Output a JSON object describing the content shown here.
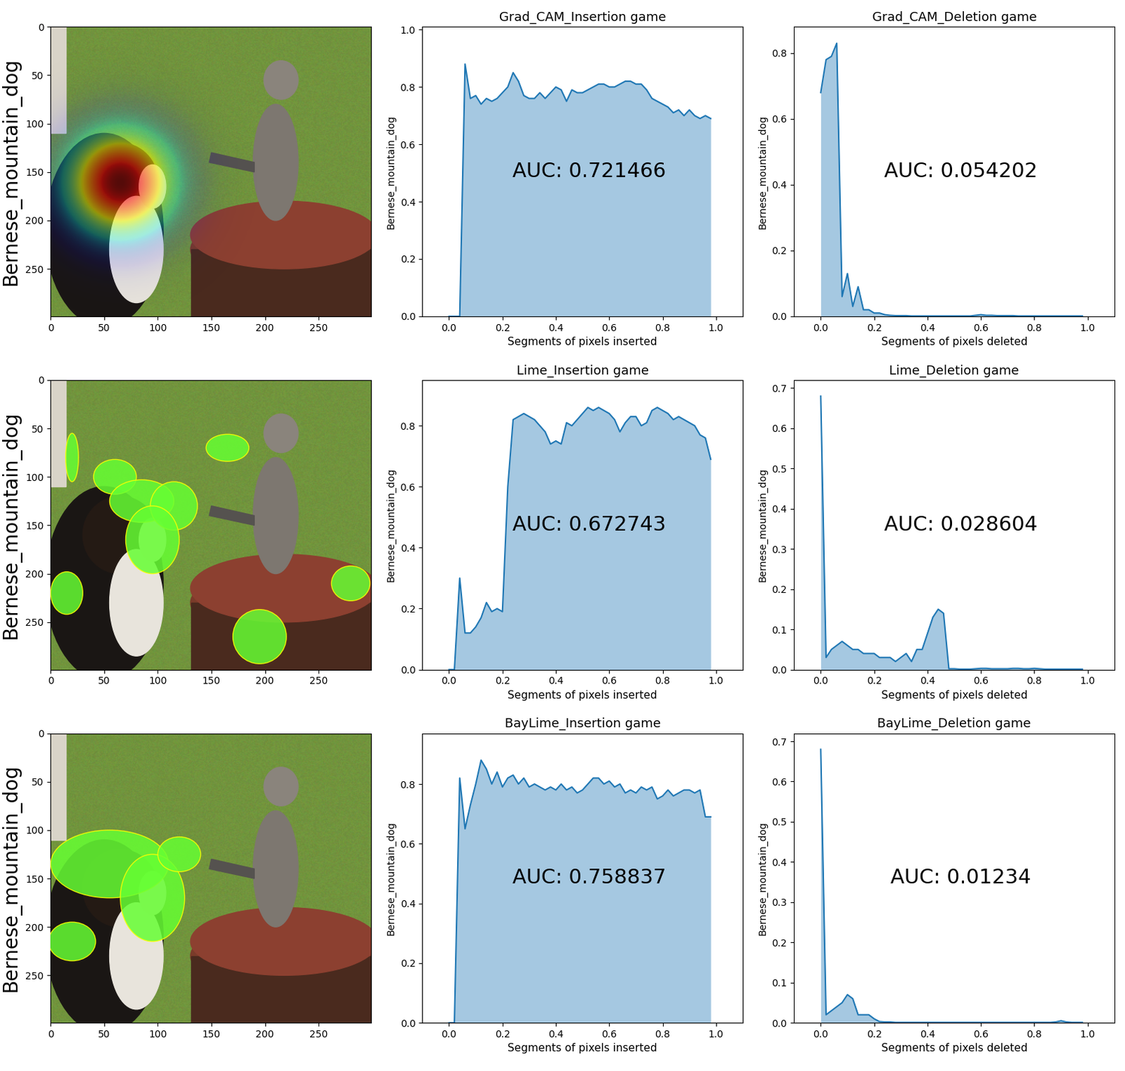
{
  "chart_data": [
    {
      "type": "image",
      "ylabel": "Bernese_mountain_dog",
      "xlim": [
        0,
        299
      ],
      "ylim": [
        299,
        0
      ],
      "xticks": [
        0,
        50,
        100,
        150,
        200,
        250
      ],
      "yticks": [
        0,
        50,
        100,
        150,
        200,
        250
      ]
    },
    {
      "type": "area",
      "title": "Grad_CAM_Insertion game",
      "xlabel": "Segments of pixels inserted",
      "ylabel": "Bernese_mountain_dog",
      "annotation": "AUC: 0.721466",
      "color": "#1f77b4",
      "xlim": [
        -0.1,
        1.1
      ],
      "xticks": [
        0.0,
        0.2,
        0.4,
        0.6,
        0.8,
        1.0
      ],
      "ylim": [
        0.0,
        1.01
      ],
      "yticks": [
        0.0,
        0.2,
        0.4,
        0.6,
        0.8,
        1.0
      ],
      "x": [
        0.0,
        0.02,
        0.04,
        0.06,
        0.08,
        0.1,
        0.12,
        0.14,
        0.16,
        0.18,
        0.2,
        0.22,
        0.24,
        0.26,
        0.28,
        0.3,
        0.32,
        0.34,
        0.36,
        0.38,
        0.4,
        0.42,
        0.44,
        0.46,
        0.48,
        0.5,
        0.52,
        0.54,
        0.56,
        0.58,
        0.6,
        0.62,
        0.64,
        0.66,
        0.68,
        0.7,
        0.72,
        0.74,
        0.76,
        0.78,
        0.8,
        0.82,
        0.84,
        0.86,
        0.88,
        0.9,
        0.92,
        0.94,
        0.96,
        0.98
      ],
      "values": [
        0,
        0,
        0,
        0.88,
        0.76,
        0.77,
        0.74,
        0.76,
        0.75,
        0.76,
        0.78,
        0.8,
        0.85,
        0.82,
        0.77,
        0.76,
        0.76,
        0.78,
        0.76,
        0.78,
        0.8,
        0.79,
        0.75,
        0.79,
        0.78,
        0.78,
        0.79,
        0.8,
        0.81,
        0.81,
        0.8,
        0.8,
        0.81,
        0.82,
        0.82,
        0.81,
        0.81,
        0.79,
        0.76,
        0.75,
        0.74,
        0.73,
        0.71,
        0.72,
        0.7,
        0.72,
        0.7,
        0.69,
        0.7,
        0.69
      ]
    },
    {
      "type": "area",
      "title": "Grad_CAM_Deletion game",
      "xlabel": "Segments of pixels deleted",
      "ylabel": "Bernese_mountain_dog",
      "annotation": "AUC: 0.054202",
      "color": "#1f77b4",
      "xlim": [
        -0.1,
        1.1
      ],
      "xticks": [
        0.0,
        0.2,
        0.4,
        0.6,
        0.8,
        1.0
      ],
      "ylim": [
        0.0,
        0.88
      ],
      "yticks": [
        0.0,
        0.2,
        0.4,
        0.6,
        0.8
      ],
      "x": [
        0.0,
        0.02,
        0.04,
        0.06,
        0.08,
        0.1,
        0.12,
        0.14,
        0.16,
        0.18,
        0.2,
        0.22,
        0.24,
        0.26,
        0.28,
        0.3,
        0.32,
        0.34,
        0.36,
        0.38,
        0.4,
        0.42,
        0.44,
        0.46,
        0.48,
        0.5,
        0.52,
        0.54,
        0.56,
        0.58,
        0.6,
        0.62,
        0.64,
        0.66,
        0.68,
        0.7,
        0.72,
        0.74,
        0.76,
        0.78,
        0.8,
        0.82,
        0.84,
        0.86,
        0.88,
        0.9,
        0.92,
        0.94,
        0.96,
        0.98
      ],
      "values": [
        0.68,
        0.78,
        0.79,
        0.83,
        0.06,
        0.13,
        0.03,
        0.09,
        0.02,
        0.02,
        0.01,
        0.01,
        0.005,
        0.003,
        0.002,
        0.002,
        0.002,
        0.001,
        0.001,
        0.001,
        0.001,
        0.001,
        0.001,
        0.001,
        0.001,
        0.001,
        0.001,
        0.001,
        0.001,
        0.003,
        0.005,
        0.003,
        0.003,
        0.002,
        0.002,
        0.002,
        0.002,
        0.001,
        0.001,
        0.001,
        0.001,
        0.001,
        0.001,
        0.001,
        0.001,
        0.001,
        0.001,
        0.001,
        0.001,
        0.001
      ]
    },
    {
      "type": "image",
      "ylabel": "Bernese_mountain_dog",
      "xlim": [
        0,
        299
      ],
      "ylim": [
        299,
        0
      ],
      "xticks": [
        0,
        50,
        100,
        150,
        200,
        250
      ],
      "yticks": [
        0,
        50,
        100,
        150,
        200,
        250
      ]
    },
    {
      "type": "area",
      "title": "Lime_Insertion game",
      "xlabel": "Segments of pixels inserted",
      "ylabel": "Bernese_mountain_dog",
      "annotation": "AUC: 0.672743",
      "color": "#1f77b4",
      "xlim": [
        -0.1,
        1.1
      ],
      "xticks": [
        0.0,
        0.2,
        0.4,
        0.6,
        0.8,
        1.0
      ],
      "ylim": [
        0.0,
        0.95
      ],
      "yticks": [
        0.0,
        0.2,
        0.4,
        0.6,
        0.8
      ],
      "x": [
        0.0,
        0.02,
        0.04,
        0.06,
        0.08,
        0.1,
        0.12,
        0.14,
        0.16,
        0.18,
        0.2,
        0.22,
        0.24,
        0.26,
        0.28,
        0.3,
        0.32,
        0.34,
        0.36,
        0.38,
        0.4,
        0.42,
        0.44,
        0.46,
        0.48,
        0.5,
        0.52,
        0.54,
        0.56,
        0.58,
        0.6,
        0.62,
        0.64,
        0.66,
        0.68,
        0.7,
        0.72,
        0.74,
        0.76,
        0.78,
        0.8,
        0.82,
        0.84,
        0.86,
        0.88,
        0.9,
        0.92,
        0.94,
        0.96,
        0.98
      ],
      "values": [
        0,
        0,
        0.3,
        0.12,
        0.12,
        0.14,
        0.17,
        0.22,
        0.19,
        0.2,
        0.19,
        0.6,
        0.82,
        0.83,
        0.84,
        0.83,
        0.82,
        0.8,
        0.78,
        0.74,
        0.75,
        0.74,
        0.81,
        0.8,
        0.82,
        0.84,
        0.86,
        0.85,
        0.86,
        0.85,
        0.84,
        0.82,
        0.78,
        0.81,
        0.83,
        0.83,
        0.8,
        0.81,
        0.85,
        0.86,
        0.85,
        0.84,
        0.82,
        0.83,
        0.82,
        0.81,
        0.8,
        0.77,
        0.76,
        0.69
      ]
    },
    {
      "type": "area",
      "title": "Lime_Deletion game",
      "xlabel": "Segments of pixels deleted",
      "ylabel": "Bernese_mountain_dog",
      "annotation": "AUC: 0.028604",
      "color": "#1f77b4",
      "xlim": [
        -0.1,
        1.1
      ],
      "xticks": [
        0.0,
        0.2,
        0.4,
        0.6,
        0.8,
        1.0
      ],
      "ylim": [
        0.0,
        0.72
      ],
      "yticks": [
        0.0,
        0.1,
        0.2,
        0.3,
        0.4,
        0.5,
        0.6,
        0.7
      ],
      "x": [
        0.0,
        0.02,
        0.04,
        0.06,
        0.08,
        0.1,
        0.12,
        0.14,
        0.16,
        0.18,
        0.2,
        0.22,
        0.24,
        0.26,
        0.28,
        0.3,
        0.32,
        0.34,
        0.36,
        0.38,
        0.4,
        0.42,
        0.44,
        0.46,
        0.48,
        0.5,
        0.52,
        0.54,
        0.56,
        0.58,
        0.6,
        0.62,
        0.64,
        0.66,
        0.68,
        0.7,
        0.72,
        0.74,
        0.76,
        0.78,
        0.8,
        0.82,
        0.84,
        0.86,
        0.88,
        0.9,
        0.92,
        0.94,
        0.96,
        0.98
      ],
      "values": [
        0.68,
        0.03,
        0.05,
        0.06,
        0.07,
        0.06,
        0.05,
        0.05,
        0.04,
        0.04,
        0.04,
        0.03,
        0.03,
        0.03,
        0.02,
        0.03,
        0.04,
        0.02,
        0.05,
        0.05,
        0.09,
        0.13,
        0.15,
        0.14,
        0.002,
        0.002,
        0.001,
        0.001,
        0.001,
        0.002,
        0.003,
        0.003,
        0.002,
        0.002,
        0.002,
        0.002,
        0.003,
        0.003,
        0.002,
        0.002,
        0.003,
        0.002,
        0.001,
        0.001,
        0.001,
        0.001,
        0.001,
        0.001,
        0.001,
        0.001
      ]
    },
    {
      "type": "image",
      "ylabel": "Bernese_mountain_dog",
      "xlim": [
        0,
        299
      ],
      "ylim": [
        299,
        0
      ],
      "xticks": [
        0,
        50,
        100,
        150,
        200,
        250
      ],
      "yticks": [
        0,
        50,
        100,
        150,
        200,
        250
      ]
    },
    {
      "type": "area",
      "title": "BayLime_Insertion game",
      "xlabel": "Segments of pixels inserted",
      "ylabel": "Bernese_mountain_dog",
      "annotation": "AUC: 0.758837",
      "color": "#1f77b4",
      "xlim": [
        -0.1,
        1.1
      ],
      "xticks": [
        0.0,
        0.2,
        0.4,
        0.6,
        0.8,
        1.0
      ],
      "ylim": [
        0.0,
        0.97
      ],
      "yticks": [
        0.0,
        0.2,
        0.4,
        0.6,
        0.8
      ],
      "x": [
        0.0,
        0.02,
        0.04,
        0.06,
        0.08,
        0.1,
        0.12,
        0.14,
        0.16,
        0.18,
        0.2,
        0.22,
        0.24,
        0.26,
        0.28,
        0.3,
        0.32,
        0.34,
        0.36,
        0.38,
        0.4,
        0.42,
        0.44,
        0.46,
        0.48,
        0.5,
        0.52,
        0.54,
        0.56,
        0.58,
        0.6,
        0.62,
        0.64,
        0.66,
        0.68,
        0.7,
        0.72,
        0.74,
        0.76,
        0.78,
        0.8,
        0.82,
        0.84,
        0.86,
        0.88,
        0.9,
        0.92,
        0.94,
        0.96,
        0.98
      ],
      "values": [
        0,
        0,
        0.82,
        0.65,
        0.73,
        0.8,
        0.88,
        0.85,
        0.8,
        0.84,
        0.79,
        0.82,
        0.83,
        0.8,
        0.82,
        0.79,
        0.8,
        0.79,
        0.78,
        0.79,
        0.78,
        0.8,
        0.78,
        0.79,
        0.77,
        0.78,
        0.8,
        0.82,
        0.82,
        0.8,
        0.81,
        0.79,
        0.8,
        0.77,
        0.78,
        0.77,
        0.79,
        0.78,
        0.79,
        0.75,
        0.76,
        0.78,
        0.76,
        0.77,
        0.78,
        0.78,
        0.77,
        0.78,
        0.69,
        0.69
      ]
    },
    {
      "type": "area",
      "title": "BayLime_Deletion game",
      "xlabel": "Segments of pixels deleted",
      "ylabel": "Bernese_mountain_dog",
      "annotation": "AUC: 0.01234",
      "color": "#1f77b4",
      "xlim": [
        -0.1,
        1.1
      ],
      "xticks": [
        0.0,
        0.2,
        0.4,
        0.6,
        0.8,
        1.0
      ],
      "ylim": [
        0.0,
        0.72
      ],
      "yticks": [
        0.0,
        0.1,
        0.2,
        0.3,
        0.4,
        0.5,
        0.6,
        0.7
      ],
      "x": [
        0.0,
        0.02,
        0.04,
        0.06,
        0.08,
        0.1,
        0.12,
        0.14,
        0.16,
        0.18,
        0.2,
        0.22,
        0.24,
        0.26,
        0.28,
        0.3,
        0.32,
        0.34,
        0.36,
        0.38,
        0.4,
        0.42,
        0.44,
        0.46,
        0.48,
        0.5,
        0.52,
        0.54,
        0.56,
        0.58,
        0.6,
        0.62,
        0.64,
        0.66,
        0.68,
        0.7,
        0.72,
        0.74,
        0.76,
        0.78,
        0.8,
        0.82,
        0.84,
        0.86,
        0.88,
        0.9,
        0.92,
        0.94,
        0.96,
        0.98
      ],
      "values": [
        0.68,
        0.02,
        0.03,
        0.04,
        0.05,
        0.07,
        0.06,
        0.02,
        0.02,
        0.02,
        0.01,
        0.003,
        0.002,
        0.002,
        0.001,
        0.001,
        0.001,
        0.001,
        0.001,
        0.001,
        0.001,
        0.001,
        0.001,
        0.001,
        0.001,
        0.001,
        0.001,
        0.001,
        0.001,
        0.001,
        0.001,
        0.001,
        0.001,
        0.001,
        0.001,
        0.001,
        0.001,
        0.001,
        0.001,
        0.001,
        0.001,
        0.001,
        0.001,
        0.001,
        0.002,
        0.005,
        0.002,
        0.001,
        0.001,
        0.001
      ]
    }
  ]
}
